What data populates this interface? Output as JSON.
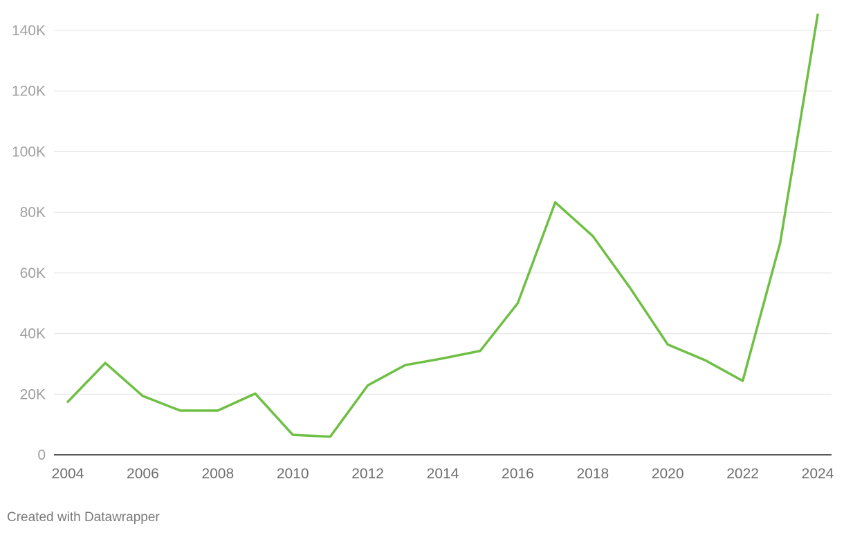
{
  "chart_data": {
    "type": "line",
    "x": [
      2004,
      2005,
      2006,
      2007,
      2008,
      2009,
      2010,
      2011,
      2012,
      2013,
      2014,
      2015,
      2016,
      2017,
      2018,
      2019,
      2020,
      2021,
      2022,
      2023,
      2024
    ],
    "series": [
      {
        "values": [
          17500,
          30300,
          19400,
          14600,
          14600,
          20200,
          6600,
          6000,
          22900,
          29600,
          31800,
          34300,
          50000,
          83300,
          72200,
          55000,
          36400,
          31200,
          24400,
          70000,
          145200
        ],
        "color": "#6fbf44"
      }
    ],
    "title": "",
    "xlabel": "",
    "ylabel": "",
    "ylim": [
      0,
      140000
    ],
    "xlim": [
      2004,
      2024
    ],
    "y_ticks": [
      {
        "value": 0,
        "label": "0"
      },
      {
        "value": 20000,
        "label": "20K"
      },
      {
        "value": 40000,
        "label": "40K"
      },
      {
        "value": 60000,
        "label": "60K"
      },
      {
        "value": 80000,
        "label": "80K"
      },
      {
        "value": 100000,
        "label": "100K"
      },
      {
        "value": 120000,
        "label": "120K"
      },
      {
        "value": 140000,
        "label": "140K"
      }
    ],
    "x_ticks": [
      {
        "value": 2004,
        "label": "2004"
      },
      {
        "value": 2006,
        "label": "2006"
      },
      {
        "value": 2008,
        "label": "2008"
      },
      {
        "value": 2010,
        "label": "2010"
      },
      {
        "value": 2012,
        "label": "2012"
      },
      {
        "value": 2014,
        "label": "2014"
      },
      {
        "value": 2016,
        "label": "2016"
      },
      {
        "value": 2018,
        "label": "2018"
      },
      {
        "value": 2020,
        "label": "2020"
      },
      {
        "value": 2022,
        "label": "2022"
      },
      {
        "value": 2024,
        "label": "2024"
      }
    ],
    "grid": true,
    "legend": "none"
  },
  "footer": {
    "credit": "Created with Datawrapper"
  }
}
